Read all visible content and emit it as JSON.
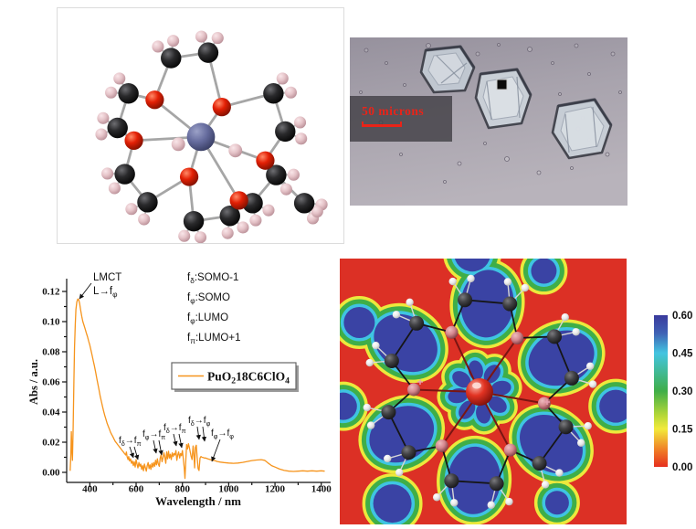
{
  "figure": {
    "background": "#ffffff",
    "molecule_panel": {
      "description_name": "crown-ether-metal-complex-model",
      "atom_colors": {
        "carbon": "#151515",
        "oxygen": "#e01e05",
        "hydrogen": "#e5c3c8",
        "metal_center": "#666c9e",
        "bond": "#a6a6a6"
      }
    },
    "microscopy_panel": {
      "scale_label": "50 microns",
      "scale_label_color": "#ea2318",
      "background_tint": "#a8a3ad",
      "crystal_count": 3
    },
    "elf_panel": {
      "background_color": "#dc3025",
      "lobe_color": "#3a43a4",
      "ring_colors": {
        "cyan": "#3fc4e2",
        "green": "#3fae48",
        "yellow": "#ece93c"
      },
      "colorbar": {
        "ticks": [
          "0.60",
          "0.45",
          "0.30",
          "0.15",
          "0.00"
        ],
        "gradient_top_to_bottom": [
          "#3a3a9c",
          "#3f62b5",
          "#43c5e1",
          "#3fae48",
          "#b5d838",
          "#f2ea3b",
          "#ef7525",
          "#e6301f"
        ]
      }
    }
  },
  "chart_data": {
    "type": "line",
    "title": "",
    "xlabel": "Wavelength / nm",
    "ylabel": "Abs / a.u.",
    "xlim": [
      300,
      1430
    ],
    "ylim": [
      -0.007,
      0.129
    ],
    "x_ticks": [
      400,
      600,
      800,
      1000,
      1200,
      1400
    ],
    "x_minor_ticks": [
      500,
      700,
      900,
      1100,
      1300
    ],
    "y_ticks": [
      "0.00",
      "0.02",
      "0.04",
      "0.06",
      "0.08",
      "0.10",
      "0.12"
    ],
    "y_tick_values": [
      0,
      0.02,
      0.04,
      0.06,
      0.08,
      0.1,
      0.12
    ],
    "grid": false,
    "legend": {
      "label": "PuO_218C6ClO_4",
      "line_color": "#f6941c",
      "position": "middle-right-box"
    },
    "annotations": {
      "peak_label_lines": [
        "LMCT",
        "L→f_φ"
      ],
      "orbital_assignments": [
        "f_δ:SOMO-1",
        "f_φ:SOMO",
        "f_φ:LUMO",
        "f_π:LUMO+1"
      ],
      "transitions": [
        "f_δ→f_π",
        "f_φ→f_π",
        "f_δ→f_π",
        "f_δ→f_φ",
        "f_φ→f_φ"
      ]
    },
    "series": [
      {
        "name": "PuO218C6ClO4",
        "color": "#f6941c",
        "points": [
          [
            315,
            0.001
          ],
          [
            318,
            0.012
          ],
          [
            320,
            0.027
          ],
          [
            322,
            0.018
          ],
          [
            325,
            0.008
          ],
          [
            328,
            0.03
          ],
          [
            331,
            0.06
          ],
          [
            334,
            0.083
          ],
          [
            337,
            0.098
          ],
          [
            340,
            0.108
          ],
          [
            344,
            0.113
          ],
          [
            348,
            0.115
          ],
          [
            352,
            0.1145
          ],
          [
            356,
            0.112
          ],
          [
            360,
            0.108
          ],
          [
            365,
            0.1035
          ],
          [
            370,
            0.1
          ],
          [
            375,
            0.0975
          ],
          [
            380,
            0.095
          ],
          [
            385,
            0.0925
          ],
          [
            390,
            0.09
          ],
          [
            395,
            0.087
          ],
          [
            400,
            0.0845
          ],
          [
            405,
            0.081
          ],
          [
            410,
            0.0775
          ],
          [
            415,
            0.074
          ],
          [
            420,
            0.0705
          ],
          [
            425,
            0.0665
          ],
          [
            430,
            0.0625
          ],
          [
            435,
            0.0585
          ],
          [
            440,
            0.0545
          ],
          [
            445,
            0.0505
          ],
          [
            450,
            0.047
          ],
          [
            455,
            0.0435
          ],
          [
            460,
            0.0405
          ],
          [
            465,
            0.0375
          ],
          [
            470,
            0.035
          ],
          [
            475,
            0.0325
          ],
          [
            480,
            0.0305
          ],
          [
            485,
            0.0285
          ],
          [
            490,
            0.0265
          ],
          [
            495,
            0.025
          ],
          [
            500,
            0.0235
          ],
          [
            505,
            0.022
          ],
          [
            510,
            0.0205
          ],
          [
            515,
            0.0195
          ],
          [
            520,
            0.0185
          ],
          [
            525,
            0.0175
          ],
          [
            530,
            0.0165
          ],
          [
            535,
            0.0155
          ],
          [
            540,
            0.0145
          ],
          [
            545,
            0.0135
          ],
          [
            550,
            0.0125
          ],
          [
            555,
            0.0115
          ],
          [
            558,
            0.0135
          ],
          [
            561,
            0.0105
          ],
          [
            565,
            0.0085
          ],
          [
            568,
            0.0105
          ],
          [
            572,
            0.0075
          ],
          [
            576,
            0.009
          ],
          [
            580,
            0.006
          ],
          [
            584,
            0.0075
          ],
          [
            588,
            0.0045
          ],
          [
            592,
            0.007
          ],
          [
            596,
            0.0035
          ],
          [
            600,
            0.0085
          ],
          [
            604,
            0.0055
          ],
          [
            608,
            0.003
          ],
          [
            612,
            0.0065
          ],
          [
            616,
            0.004
          ],
          [
            620,
            0.0055
          ],
          [
            624,
            0.002
          ],
          [
            628,
            0.0045
          ],
          [
            632,
            0.001
          ],
          [
            636,
            0.0055
          ],
          [
            640,
            0.003
          ],
          [
            644,
            0.0008
          ],
          [
            648,
            0.0045
          ],
          [
            652,
            0.0065
          ],
          [
            656,
            0.0025
          ],
          [
            660,
            0.005
          ],
          [
            664,
            0.002
          ],
          [
            668,
            0.006
          ],
          [
            672,
            0.0035
          ],
          [
            676,
            0.0065
          ],
          [
            680,
            0.004
          ],
          [
            684,
            0.008
          ],
          [
            688,
            0.005
          ],
          [
            692,
            0.009
          ],
          [
            696,
            0.0055
          ],
          [
            700,
            0.004
          ],
          [
            704,
            0.0095
          ],
          [
            708,
            0.0115
          ],
          [
            712,
            0.007
          ],
          [
            716,
            0.0095
          ],
          [
            720,
            0.013
          ],
          [
            724,
            0.0105
          ],
          [
            728,
            0.006
          ],
          [
            732,
            0.0135
          ],
          [
            736,
            0.009
          ],
          [
            740,
            0.014
          ],
          [
            744,
            0.0095
          ],
          [
            748,
            0.012
          ],
          [
            752,
            0.0085
          ],
          [
            756,
            0.013
          ],
          [
            760,
            0.0105
          ],
          [
            764,
            0.0125
          ],
          [
            768,
            0.0115
          ],
          [
            772,
            0.0145
          ],
          [
            776,
            0.008
          ],
          [
            780,
            0.0115
          ],
          [
            784,
            0.0135
          ],
          [
            788,
            0.0095
          ],
          [
            792,
            0.0125
          ],
          [
            796,
            0.011
          ],
          [
            800,
            0.0145
          ],
          [
            804,
            0.009
          ],
          [
            808,
            0.003
          ],
          [
            811,
            -0.004
          ],
          [
            814,
            0.005
          ],
          [
            818,
            0.0185
          ],
          [
            822,
            0.0155
          ],
          [
            826,
            0.019
          ],
          [
            830,
            0.0165
          ],
          [
            834,
            0.0135
          ],
          [
            838,
            0.0105
          ],
          [
            842,
            0.0085
          ],
          [
            846,
            0.0175
          ],
          [
            850,
            0.0105
          ],
          [
            853,
            0.003
          ],
          [
            856,
            0.0165
          ],
          [
            860,
            0.018
          ],
          [
            864,
            0.0095
          ],
          [
            868,
            0.0025
          ],
          [
            872,
            0.0012
          ],
          [
            876,
            0.0095
          ],
          [
            880,
            0.0105
          ],
          [
            885,
            0.01
          ],
          [
            890,
            0.0098
          ],
          [
            895,
            0.0095
          ],
          [
            900,
            0.0095
          ],
          [
            910,
            0.009
          ],
          [
            920,
            0.0085
          ],
          [
            930,
            0.008
          ],
          [
            940,
            0.0078
          ],
          [
            950,
            0.0072
          ],
          [
            965,
            0.0068
          ],
          [
            980,
            0.0065
          ],
          [
            1000,
            0.0062
          ],
          [
            1020,
            0.006
          ],
          [
            1040,
            0.0062
          ],
          [
            1060,
            0.0066
          ],
          [
            1080,
            0.0072
          ],
          [
            1100,
            0.0078
          ],
          [
            1120,
            0.0082
          ],
          [
            1140,
            0.0084
          ],
          [
            1155,
            0.008
          ],
          [
            1170,
            0.0062
          ],
          [
            1185,
            0.0045
          ],
          [
            1200,
            0.0035
          ],
          [
            1220,
            0.0022
          ],
          [
            1240,
            0.0013
          ],
          [
            1260,
            0.0008
          ],
          [
            1280,
            0.0006
          ],
          [
            1300,
            0.0008
          ],
          [
            1320,
            0.001
          ],
          [
            1340,
            0.0008
          ],
          [
            1360,
            0.001
          ],
          [
            1380,
            0.0008
          ],
          [
            1400,
            0.001
          ],
          [
            1415,
            0.0008
          ]
        ]
      }
    ]
  }
}
